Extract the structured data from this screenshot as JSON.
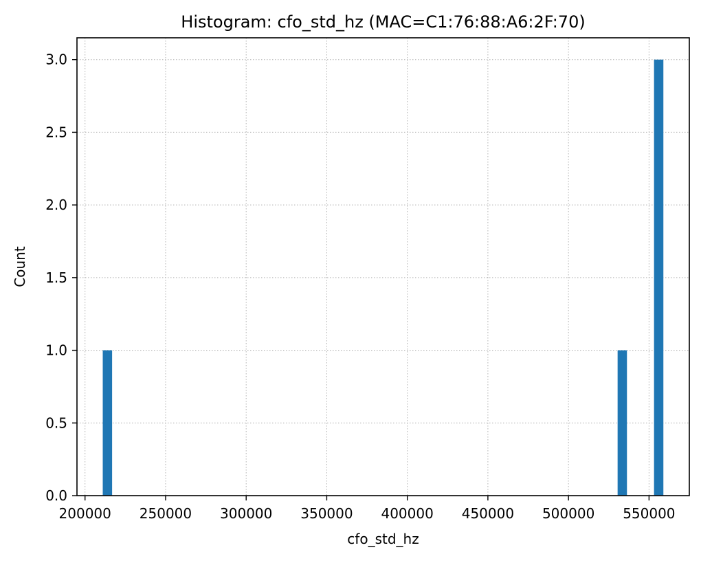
{
  "chart_data": {
    "type": "bar",
    "title": "Histogram: cfo_std_hz (MAC=C1:76:88:A6:2F:70)",
    "xlabel": "cfo_std_hz",
    "ylabel": "Count",
    "xlim": [
      195000,
      575000
    ],
    "ylim": [
      0,
      3.15
    ],
    "x_ticks": [
      200000,
      250000,
      300000,
      350000,
      400000,
      450000,
      500000,
      550000
    ],
    "x_tick_labels": [
      "200000",
      "250000",
      "300000",
      "350000",
      "400000",
      "450000",
      "500000",
      "550000"
    ],
    "y_ticks": [
      0,
      0.5,
      1.0,
      1.5,
      2.0,
      2.5,
      3.0
    ],
    "y_tick_labels": [
      "0.0",
      "0.5",
      "1.0",
      "1.5",
      "2.0",
      "2.5",
      "3.0"
    ],
    "grid": true,
    "bins": [
      {
        "x_start": 211000,
        "x_end": 216800,
        "count": 1
      },
      {
        "x_start": 530500,
        "x_end": 536300,
        "count": 1
      },
      {
        "x_start": 553100,
        "x_end": 558900,
        "count": 3
      }
    ],
    "colors": {
      "bar": "#1f77b4",
      "grid": "#b0b0b0",
      "axis": "#000000"
    }
  }
}
